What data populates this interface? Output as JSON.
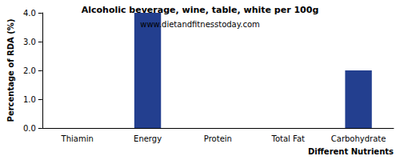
{
  "chart_data": {
    "type": "bar",
    "title": "Alcoholic beverage, wine, table, white per 100g",
    "subtitle": "www.dietandfitnesstoday.com",
    "x_label": "Different Nutrients",
    "y_label": "Percentage of RDA (%)",
    "categories": [
      "Thiamin",
      "Energy",
      "Protein",
      "Total Fat",
      "Carbohydrate"
    ],
    "values": [
      0,
      4,
      0,
      0,
      2
    ],
    "color": "#233f8f",
    "ylim": [
      0,
      4
    ],
    "yticks": [
      {
        "value": 0,
        "label": "0.0"
      },
      {
        "value": 1,
        "label": "1.0"
      },
      {
        "value": 2,
        "label": "2.0"
      },
      {
        "value": 3,
        "label": "3.0"
      },
      {
        "value": 4,
        "label": "4.0"
      }
    ],
    "grid": false
  }
}
